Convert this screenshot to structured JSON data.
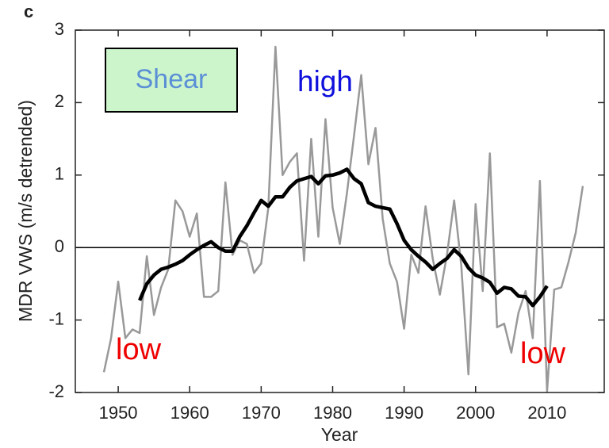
{
  "chart_data": {
    "type": "line",
    "panel_label": "c",
    "xlabel": "Year",
    "ylabel": "MDR VWS (m/s detrended)",
    "annotations": [
      "Shear",
      "high",
      "low",
      "low"
    ],
    "xlim": [
      1944,
      2018
    ],
    "xticks": [
      1950,
      1960,
      1970,
      1980,
      1990,
      2000,
      2010
    ],
    "ylim": [
      -2,
      3
    ],
    "yticks": [
      -2,
      -1,
      0,
      1,
      2,
      3
    ],
    "reference_line": 0,
    "series": [
      {
        "color": "#999999",
        "x": [
          1948,
          1949,
          1950,
          1951,
          1952,
          1953,
          1954,
          1955,
          1956,
          1957,
          1958,
          1959,
          1960,
          1961,
          1962,
          1963,
          1964,
          1965,
          1966,
          1967,
          1968,
          1969,
          1970,
          1971,
          1972,
          1973,
          1974,
          1975,
          1976,
          1977,
          1978,
          1979,
          1980,
          1981,
          1982,
          1983,
          1984,
          1985,
          1986,
          1987,
          1988,
          1989,
          1990,
          1991,
          1992,
          1993,
          1994,
          1995,
          1996,
          1997,
          1998,
          1999,
          2000,
          2001,
          2002,
          2003,
          2004,
          2005,
          2006,
          2007,
          2008,
          2009,
          2010,
          2011,
          2012,
          2013,
          2014,
          2015
        ],
        "values": [
          -1.72,
          -1.25,
          -0.47,
          -1.25,
          -1.13,
          -1.18,
          -0.12,
          -0.93,
          -0.55,
          -0.3,
          0.65,
          0.5,
          0.15,
          0.47,
          -0.68,
          -0.68,
          -0.6,
          0.9,
          -0.1,
          0.1,
          0.05,
          -0.35,
          -0.22,
          0.55,
          2.77,
          1.0,
          1.18,
          1.3,
          -0.18,
          1.5,
          0.15,
          1.77,
          0.55,
          0.05,
          0.75,
          1.55,
          2.38,
          1.15,
          1.65,
          0.4,
          -0.22,
          -0.47,
          -1.12,
          -0.1,
          -0.35,
          0.57,
          -0.15,
          -0.65,
          -0.1,
          0.65,
          -0.25,
          -1.75,
          0.6,
          -0.6,
          1.3,
          -1.1,
          -1.05,
          -1.45,
          -0.9,
          -0.6,
          -1.25,
          0.92,
          -1.98,
          -0.58,
          -0.55,
          -0.2,
          0.2,
          0.85
        ]
      },
      {
        "color": "#000000",
        "x": [
          1953,
          1954,
          1955,
          1956,
          1957,
          1958,
          1959,
          1960,
          1961,
          1962,
          1963,
          1964,
          1965,
          1966,
          1967,
          1968,
          1969,
          1970,
          1971,
          1972,
          1973,
          1974,
          1975,
          1976,
          1977,
          1978,
          1979,
          1980,
          1981,
          1982,
          1983,
          1984,
          1985,
          1986,
          1987,
          1988,
          1989,
          1990,
          1991,
          1992,
          1993,
          1994,
          1995,
          1996,
          1997,
          1998,
          1999,
          2000,
          2001,
          2002,
          2003,
          2004,
          2005,
          2006,
          2007,
          2008,
          2009,
          2010
        ],
        "values": [
          -0.73,
          -0.5,
          -0.38,
          -0.3,
          -0.27,
          -0.23,
          -0.18,
          -0.1,
          -0.03,
          0.03,
          0.08,
          0.0,
          -0.05,
          -0.05,
          0.15,
          0.3,
          0.48,
          0.65,
          0.57,
          0.7,
          0.7,
          0.83,
          0.92,
          0.95,
          0.98,
          0.88,
          0.99,
          1.0,
          1.03,
          1.08,
          0.95,
          0.88,
          0.62,
          0.57,
          0.55,
          0.53,
          0.33,
          0.1,
          -0.03,
          -0.12,
          -0.2,
          -0.3,
          -0.22,
          -0.15,
          -0.03,
          -0.12,
          -0.28,
          -0.38,
          -0.42,
          -0.48,
          -0.63,
          -0.55,
          -0.57,
          -0.67,
          -0.68,
          -0.8,
          -0.68,
          -0.53
        ]
      }
    ]
  }
}
